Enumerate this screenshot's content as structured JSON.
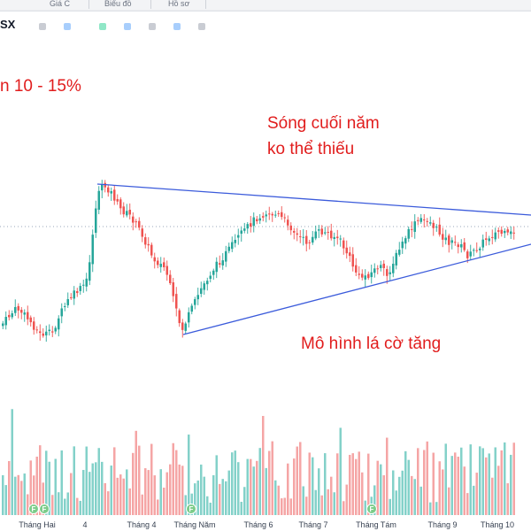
{
  "header": {
    "symbol": "SX",
    "top_tabs": [
      "Giá C",
      "Biểu đồ",
      "Hồ sơ"
    ]
  },
  "overlays": {
    "left_note": "n 10 - 15%",
    "wave_line1": "Sóng cuối năm",
    "wave_line2": "ko thể thiếu",
    "pattern": "Mô hình lá cờ tăng"
  },
  "colors": {
    "up": "#26a69a",
    "down": "#ef5350",
    "volume_up": "#83d1c9",
    "volume_down": "#f5a5a5",
    "trendline": "#3b5bdb",
    "overlay_text": "#e11d1d"
  },
  "chart_data": {
    "type": "candlestick",
    "x_labels": [
      "Tháng Hai",
      "4",
      "Tháng 4",
      "Tháng Năm",
      "Tháng 6",
      "Tháng 7",
      "Tháng Tám",
      "Tháng 9",
      "Tháng 10"
    ],
    "event_markers": [
      "F",
      "F",
      "F",
      "F"
    ]
  }
}
